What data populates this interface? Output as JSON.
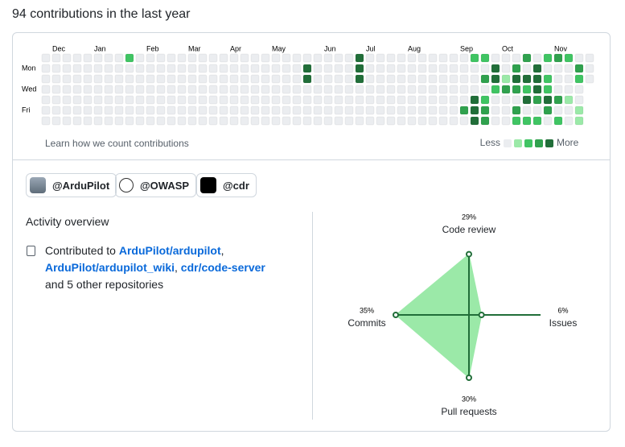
{
  "header": {
    "title": "94 contributions in the last year"
  },
  "calendar": {
    "months": [
      "Dec",
      "Jan",
      "Feb",
      "Mar",
      "Apr",
      "May",
      "Jun",
      "Jul",
      "Aug",
      "Sep",
      "Oct",
      "Nov"
    ],
    "days": [
      "Mon",
      "Wed",
      "Fri"
    ],
    "level_colors": [
      "#ebedf0",
      "#9be9a8",
      "#40c463",
      "#30a14e",
      "#216e39"
    ],
    "weeks": [
      [
        0,
        0,
        0,
        0,
        0,
        0,
        0
      ],
      [
        0,
        0,
        0,
        0,
        0,
        0,
        0
      ],
      [
        0,
        0,
        0,
        0,
        0,
        0,
        0
      ],
      [
        0,
        0,
        0,
        0,
        0,
        0,
        0
      ],
      [
        0,
        0,
        0,
        0,
        0,
        0,
        0
      ],
      [
        0,
        0,
        0,
        0,
        0,
        0,
        0
      ],
      [
        0,
        0,
        0,
        0,
        0,
        0,
        0
      ],
      [
        0,
        0,
        0,
        0,
        0,
        0,
        0
      ],
      [
        2,
        0,
        0,
        0,
        0,
        0,
        0
      ],
      [
        0,
        0,
        0,
        0,
        0,
        0,
        0
      ],
      [
        0,
        0,
        0,
        0,
        0,
        0,
        0
      ],
      [
        0,
        0,
        0,
        0,
        0,
        0,
        0
      ],
      [
        0,
        0,
        0,
        0,
        0,
        0,
        0
      ],
      [
        0,
        0,
        0,
        0,
        0,
        0,
        0
      ],
      [
        0,
        0,
        0,
        0,
        0,
        0,
        0
      ],
      [
        0,
        0,
        0,
        0,
        0,
        0,
        0
      ],
      [
        0,
        0,
        0,
        0,
        0,
        0,
        0
      ],
      [
        0,
        0,
        0,
        0,
        0,
        0,
        0
      ],
      [
        0,
        0,
        0,
        0,
        0,
        0,
        0
      ],
      [
        0,
        0,
        0,
        0,
        0,
        0,
        0
      ],
      [
        0,
        0,
        0,
        0,
        0,
        0,
        0
      ],
      [
        0,
        0,
        0,
        0,
        0,
        0,
        0
      ],
      [
        0,
        0,
        0,
        0,
        0,
        0,
        0
      ],
      [
        0,
        0,
        0,
        0,
        0,
        0,
        0
      ],
      [
        0,
        0,
        0,
        0,
        0,
        0,
        0
      ],
      [
        0,
        4,
        4,
        0,
        0,
        0,
        0
      ],
      [
        0,
        0,
        0,
        0,
        0,
        0,
        0
      ],
      [
        0,
        0,
        0,
        0,
        0,
        0,
        0
      ],
      [
        0,
        0,
        0,
        0,
        0,
        0,
        0
      ],
      [
        0,
        0,
        0,
        0,
        0,
        0,
        0
      ],
      [
        4,
        4,
        4,
        0,
        0,
        0,
        0
      ],
      [
        0,
        0,
        0,
        0,
        0,
        0,
        0
      ],
      [
        0,
        0,
        0,
        0,
        0,
        0,
        0
      ],
      [
        0,
        0,
        0,
        0,
        0,
        0,
        0
      ],
      [
        0,
        0,
        0,
        0,
        0,
        0,
        0
      ],
      [
        0,
        0,
        0,
        0,
        0,
        0,
        0
      ],
      [
        0,
        0,
        0,
        0,
        0,
        0,
        0
      ],
      [
        0,
        0,
        0,
        0,
        0,
        0,
        0
      ],
      [
        0,
        0,
        0,
        0,
        0,
        0,
        0
      ],
      [
        0,
        0,
        0,
        0,
        0,
        0,
        0
      ],
      [
        0,
        0,
        0,
        0,
        0,
        3,
        0
      ],
      [
        2,
        0,
        0,
        0,
        4,
        4,
        4
      ],
      [
        2,
        0,
        3,
        0,
        2,
        3,
        3
      ],
      [
        0,
        4,
        4,
        2,
        0,
        0,
        0
      ],
      [
        0,
        0,
        1,
        3,
        0,
        0,
        0
      ],
      [
        0,
        3,
        4,
        3,
        0,
        3,
        2
      ],
      [
        3,
        0,
        4,
        2,
        4,
        0,
        2
      ],
      [
        0,
        4,
        4,
        4,
        3,
        0,
        2
      ],
      [
        2,
        0,
        2,
        2,
        4,
        3,
        0
      ],
      [
        3,
        0,
        0,
        0,
        3,
        0,
        2
      ],
      [
        2,
        0,
        0,
        0,
        1,
        0,
        0
      ],
      [
        0,
        3,
        2,
        0,
        0,
        1,
        1
      ],
      [
        0,
        0,
        0
      ]
    ],
    "learn_link": "Learn how we count contributions",
    "legend_less": "Less",
    "legend_more": "More"
  },
  "orgs": [
    "@ArduPilot",
    "@OWASP",
    "@cdr"
  ],
  "activity": {
    "title": "Activity overview",
    "text_before": "Contributed to",
    "repos": [
      "ArduPilot/ardupilot",
      "ArduPilot/ardupilot_wiki",
      "cdr/code-server"
    ],
    "separator": ",",
    "text_after": "and 5 other repositories"
  },
  "radar": {
    "color": "#9be9a8",
    "line_color": "#216e39",
    "axes": [
      {
        "name": "Code review",
        "percent_label": "29%",
        "value": 29
      },
      {
        "name": "Issues",
        "percent_label": "6%",
        "value": 6
      },
      {
        "name": "Pull requests",
        "percent_label": "30%",
        "value": 30
      },
      {
        "name": "Commits",
        "percent_label": "35%",
        "value": 35
      }
    ]
  }
}
